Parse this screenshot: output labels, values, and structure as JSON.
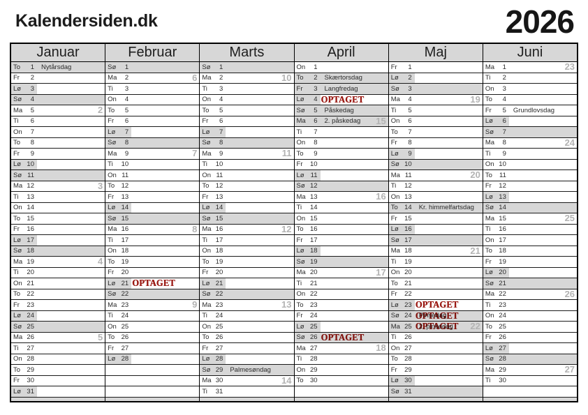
{
  "site_title": "Kalendersiden.dk",
  "year": "2026",
  "stamp_label": "OPTAGET",
  "colors": {
    "shade": "#d7d7d7",
    "stamp": "#9b1a14",
    "week_number": "#b3b3b3"
  },
  "legend": {
    "shade_codes": "s: 0=none, 1=weekend label only, 2=full row",
    "x": "OPTAGET stamp"
  },
  "months": [
    {
      "name": "Januar",
      "days": [
        {
          "d": "To",
          "n": 1,
          "t": "Nytårsdag",
          "s": 2
        },
        {
          "d": "Fr",
          "n": 2,
          "s": 0
        },
        {
          "d": "Lø",
          "n": 3,
          "s": 1
        },
        {
          "d": "Sø",
          "n": 4,
          "s": 2
        },
        {
          "d": "Ma",
          "n": 5,
          "s": 0,
          "w": 2
        },
        {
          "d": "Ti",
          "n": 6,
          "s": 0
        },
        {
          "d": "On",
          "n": 7,
          "s": 0
        },
        {
          "d": "To",
          "n": 8,
          "s": 0
        },
        {
          "d": "Fr",
          "n": 9,
          "s": 0
        },
        {
          "d": "Lø",
          "n": 10,
          "s": 1
        },
        {
          "d": "Sø",
          "n": 11,
          "s": 2
        },
        {
          "d": "Ma",
          "n": 12,
          "s": 0,
          "w": 3
        },
        {
          "d": "Ti",
          "n": 13,
          "s": 0
        },
        {
          "d": "On",
          "n": 14,
          "s": 0
        },
        {
          "d": "To",
          "n": 15,
          "s": 0
        },
        {
          "d": "Fr",
          "n": 16,
          "s": 0
        },
        {
          "d": "Lø",
          "n": 17,
          "s": 1
        },
        {
          "d": "Sø",
          "n": 18,
          "s": 2
        },
        {
          "d": "Ma",
          "n": 19,
          "s": 0,
          "w": 4
        },
        {
          "d": "Ti",
          "n": 20,
          "s": 0
        },
        {
          "d": "On",
          "n": 21,
          "s": 0
        },
        {
          "d": "To",
          "n": 22,
          "s": 0
        },
        {
          "d": "Fr",
          "n": 23,
          "s": 0
        },
        {
          "d": "Lø",
          "n": 24,
          "s": 1
        },
        {
          "d": "Sø",
          "n": 25,
          "s": 2
        },
        {
          "d": "Ma",
          "n": 26,
          "s": 0,
          "w": 5
        },
        {
          "d": "Ti",
          "n": 27,
          "s": 0
        },
        {
          "d": "On",
          "n": 28,
          "s": 0
        },
        {
          "d": "To",
          "n": 29,
          "s": 0
        },
        {
          "d": "Fr",
          "n": 30,
          "s": 0
        },
        {
          "d": "Lø",
          "n": 31,
          "s": 1
        }
      ]
    },
    {
      "name": "Februar",
      "days": [
        {
          "d": "Sø",
          "n": 1,
          "s": 2
        },
        {
          "d": "Ma",
          "n": 2,
          "s": 0,
          "w": 6
        },
        {
          "d": "Ti",
          "n": 3,
          "s": 0
        },
        {
          "d": "On",
          "n": 4,
          "s": 0
        },
        {
          "d": "To",
          "n": 5,
          "s": 0
        },
        {
          "d": "Fr",
          "n": 6,
          "s": 0
        },
        {
          "d": "Lø",
          "n": 7,
          "s": 1
        },
        {
          "d": "Sø",
          "n": 8,
          "s": 2
        },
        {
          "d": "Ma",
          "n": 9,
          "s": 0,
          "w": 7
        },
        {
          "d": "Ti",
          "n": 10,
          "s": 0
        },
        {
          "d": "On",
          "n": 11,
          "s": 0
        },
        {
          "d": "To",
          "n": 12,
          "s": 0
        },
        {
          "d": "Fr",
          "n": 13,
          "s": 0
        },
        {
          "d": "Lø",
          "n": 14,
          "s": 1
        },
        {
          "d": "Sø",
          "n": 15,
          "s": 2
        },
        {
          "d": "Ma",
          "n": 16,
          "s": 0,
          "w": 8
        },
        {
          "d": "Ti",
          "n": 17,
          "s": 0
        },
        {
          "d": "On",
          "n": 18,
          "s": 0
        },
        {
          "d": "To",
          "n": 19,
          "s": 0
        },
        {
          "d": "Fr",
          "n": 20,
          "s": 0
        },
        {
          "d": "Lø",
          "n": 21,
          "s": 1,
          "x": true
        },
        {
          "d": "Sø",
          "n": 22,
          "s": 2
        },
        {
          "d": "Ma",
          "n": 23,
          "s": 0,
          "w": 9
        },
        {
          "d": "Ti",
          "n": 24,
          "s": 0
        },
        {
          "d": "On",
          "n": 25,
          "s": 0
        },
        {
          "d": "To",
          "n": 26,
          "s": 0
        },
        {
          "d": "Fr",
          "n": 27,
          "s": 0
        },
        {
          "d": "Lø",
          "n": 28,
          "s": 1
        }
      ]
    },
    {
      "name": "Marts",
      "days": [
        {
          "d": "Sø",
          "n": 1,
          "s": 2
        },
        {
          "d": "Ma",
          "n": 2,
          "s": 0,
          "w": 10
        },
        {
          "d": "Ti",
          "n": 3,
          "s": 0
        },
        {
          "d": "On",
          "n": 4,
          "s": 0
        },
        {
          "d": "To",
          "n": 5,
          "s": 0
        },
        {
          "d": "Fr",
          "n": 6,
          "s": 0
        },
        {
          "d": "Lø",
          "n": 7,
          "s": 1
        },
        {
          "d": "Sø",
          "n": 8,
          "s": 2
        },
        {
          "d": "Ma",
          "n": 9,
          "s": 0,
          "w": 11
        },
        {
          "d": "Ti",
          "n": 10,
          "s": 0
        },
        {
          "d": "On",
          "n": 11,
          "s": 0
        },
        {
          "d": "To",
          "n": 12,
          "s": 0
        },
        {
          "d": "Fr",
          "n": 13,
          "s": 0
        },
        {
          "d": "Lø",
          "n": 14,
          "s": 1
        },
        {
          "d": "Sø",
          "n": 15,
          "s": 2
        },
        {
          "d": "Ma",
          "n": 16,
          "s": 0,
          "w": 12
        },
        {
          "d": "Ti",
          "n": 17,
          "s": 0
        },
        {
          "d": "On",
          "n": 18,
          "s": 0
        },
        {
          "d": "To",
          "n": 19,
          "s": 0
        },
        {
          "d": "Fr",
          "n": 20,
          "s": 0
        },
        {
          "d": "Lø",
          "n": 21,
          "s": 1
        },
        {
          "d": "Sø",
          "n": 22,
          "s": 2
        },
        {
          "d": "Ma",
          "n": 23,
          "s": 0,
          "w": 13
        },
        {
          "d": "Ti",
          "n": 24,
          "s": 0
        },
        {
          "d": "On",
          "n": 25,
          "s": 0
        },
        {
          "d": "To",
          "n": 26,
          "s": 0
        },
        {
          "d": "Fr",
          "n": 27,
          "s": 0
        },
        {
          "d": "Lø",
          "n": 28,
          "s": 1
        },
        {
          "d": "Sø",
          "n": 29,
          "t": "Palmesøndag",
          "s": 2
        },
        {
          "d": "Ma",
          "n": 30,
          "s": 0,
          "w": 14
        },
        {
          "d": "Ti",
          "n": 31,
          "s": 0
        }
      ]
    },
    {
      "name": "April",
      "days": [
        {
          "d": "On",
          "n": 1,
          "s": 0
        },
        {
          "d": "To",
          "n": 2,
          "t": "Skærtorsdag",
          "s": 2
        },
        {
          "d": "Fr",
          "n": 3,
          "t": "Langfredag",
          "s": 2
        },
        {
          "d": "Lø",
          "n": 4,
          "s": 1,
          "x": true
        },
        {
          "d": "Sø",
          "n": 5,
          "t": "Påskedag",
          "s": 2
        },
        {
          "d": "Ma",
          "n": 6,
          "t": "2. påskedag",
          "s": 2,
          "w": 15
        },
        {
          "d": "Ti",
          "n": 7,
          "s": 0
        },
        {
          "d": "On",
          "n": 8,
          "s": 0
        },
        {
          "d": "To",
          "n": 9,
          "s": 0
        },
        {
          "d": "Fr",
          "n": 10,
          "s": 0
        },
        {
          "d": "Lø",
          "n": 11,
          "s": 1
        },
        {
          "d": "Sø",
          "n": 12,
          "s": 2
        },
        {
          "d": "Ma",
          "n": 13,
          "s": 0,
          "w": 16
        },
        {
          "d": "Ti",
          "n": 14,
          "s": 0
        },
        {
          "d": "On",
          "n": 15,
          "s": 0
        },
        {
          "d": "To",
          "n": 16,
          "s": 0
        },
        {
          "d": "Fr",
          "n": 17,
          "s": 0
        },
        {
          "d": "Lø",
          "n": 18,
          "s": 1
        },
        {
          "d": "Sø",
          "n": 19,
          "s": 2
        },
        {
          "d": "Ma",
          "n": 20,
          "s": 0,
          "w": 17
        },
        {
          "d": "Ti",
          "n": 21,
          "s": 0
        },
        {
          "d": "On",
          "n": 22,
          "s": 0
        },
        {
          "d": "To",
          "n": 23,
          "s": 0
        },
        {
          "d": "Fr",
          "n": 24,
          "s": 0
        },
        {
          "d": "Lø",
          "n": 25,
          "s": 1
        },
        {
          "d": "Sø",
          "n": 26,
          "s": 2,
          "x": true
        },
        {
          "d": "Ma",
          "n": 27,
          "s": 0,
          "w": 18
        },
        {
          "d": "Ti",
          "n": 28,
          "s": 0
        },
        {
          "d": "On",
          "n": 29,
          "s": 0
        },
        {
          "d": "To",
          "n": 30,
          "s": 0
        }
      ]
    },
    {
      "name": "Maj",
      "days": [
        {
          "d": "Fr",
          "n": 1,
          "s": 0
        },
        {
          "d": "Lø",
          "n": 2,
          "s": 1
        },
        {
          "d": "Sø",
          "n": 3,
          "s": 2
        },
        {
          "d": "Ma",
          "n": 4,
          "s": 0,
          "w": 19
        },
        {
          "d": "Ti",
          "n": 5,
          "s": 0
        },
        {
          "d": "On",
          "n": 6,
          "s": 0
        },
        {
          "d": "To",
          "n": 7,
          "s": 0
        },
        {
          "d": "Fr",
          "n": 8,
          "s": 0
        },
        {
          "d": "Lø",
          "n": 9,
          "s": 1
        },
        {
          "d": "Sø",
          "n": 10,
          "s": 2
        },
        {
          "d": "Ma",
          "n": 11,
          "s": 0,
          "w": 20
        },
        {
          "d": "Ti",
          "n": 12,
          "s": 0
        },
        {
          "d": "On",
          "n": 13,
          "s": 0
        },
        {
          "d": "To",
          "n": 14,
          "t": "Kr. himmelfartsdag",
          "s": 2
        },
        {
          "d": "Fr",
          "n": 15,
          "s": 0
        },
        {
          "d": "Lø",
          "n": 16,
          "s": 1
        },
        {
          "d": "Sø",
          "n": 17,
          "s": 2
        },
        {
          "d": "Ma",
          "n": 18,
          "s": 0,
          "w": 21
        },
        {
          "d": "Ti",
          "n": 19,
          "s": 0
        },
        {
          "d": "On",
          "n": 20,
          "s": 0
        },
        {
          "d": "To",
          "n": 21,
          "s": 0
        },
        {
          "d": "Fr",
          "n": 22,
          "s": 0
        },
        {
          "d": "Lø",
          "n": 23,
          "s": 1,
          "x": true
        },
        {
          "d": "Sø",
          "n": 24,
          "t": "Pinsedag",
          "s": 2,
          "x": true
        },
        {
          "d": "Ma",
          "n": 25,
          "t": "2. pinsedag",
          "s": 2,
          "w": 22,
          "x": true
        },
        {
          "d": "Ti",
          "n": 26,
          "s": 0
        },
        {
          "d": "On",
          "n": 27,
          "s": 0
        },
        {
          "d": "To",
          "n": 28,
          "s": 0
        },
        {
          "d": "Fr",
          "n": 29,
          "s": 0
        },
        {
          "d": "Lø",
          "n": 30,
          "s": 1
        },
        {
          "d": "Sø",
          "n": 31,
          "s": 2
        }
      ]
    },
    {
      "name": "Juni",
      "days": [
        {
          "d": "Ma",
          "n": 1,
          "s": 0,
          "w": 23
        },
        {
          "d": "Ti",
          "n": 2,
          "s": 0
        },
        {
          "d": "On",
          "n": 3,
          "s": 0
        },
        {
          "d": "To",
          "n": 4,
          "s": 0
        },
        {
          "d": "Fr",
          "n": 5,
          "t": "Grundlovsdag",
          "s": 0
        },
        {
          "d": "Lø",
          "n": 6,
          "s": 1
        },
        {
          "d": "Sø",
          "n": 7,
          "s": 2
        },
        {
          "d": "Ma",
          "n": 8,
          "s": 0,
          "w": 24
        },
        {
          "d": "Ti",
          "n": 9,
          "s": 0
        },
        {
          "d": "On",
          "n": 10,
          "s": 0
        },
        {
          "d": "To",
          "n": 11,
          "s": 0
        },
        {
          "d": "Fr",
          "n": 12,
          "s": 0
        },
        {
          "d": "Lø",
          "n": 13,
          "s": 1
        },
        {
          "d": "Sø",
          "n": 14,
          "s": 2
        },
        {
          "d": "Ma",
          "n": 15,
          "s": 0,
          "w": 25
        },
        {
          "d": "Ti",
          "n": 16,
          "s": 0
        },
        {
          "d": "On",
          "n": 17,
          "s": 0
        },
        {
          "d": "To",
          "n": 18,
          "s": 0
        },
        {
          "d": "Fr",
          "n": 19,
          "s": 0
        },
        {
          "d": "Lø",
          "n": 20,
          "s": 1
        },
        {
          "d": "Sø",
          "n": 21,
          "s": 2
        },
        {
          "d": "Ma",
          "n": 22,
          "s": 0,
          "w": 26
        },
        {
          "d": "Ti",
          "n": 23,
          "s": 0
        },
        {
          "d": "On",
          "n": 24,
          "s": 0
        },
        {
          "d": "To",
          "n": 25,
          "s": 0
        },
        {
          "d": "Fr",
          "n": 26,
          "s": 0
        },
        {
          "d": "Lø",
          "n": 27,
          "s": 1
        },
        {
          "d": "Sø",
          "n": 28,
          "s": 2
        },
        {
          "d": "Ma",
          "n": 29,
          "s": 0,
          "w": 27
        },
        {
          "d": "Ti",
          "n": 30,
          "s": 0
        }
      ]
    }
  ]
}
